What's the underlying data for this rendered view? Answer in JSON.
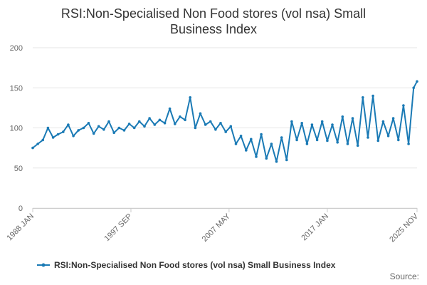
{
  "chart_data": {
    "type": "line",
    "title": "RSI:Non-Specialised Non Food stores (vol nsa) Small Business Index",
    "xlabel": "",
    "ylabel": "",
    "y_ticks": [
      "0",
      "50",
      "100",
      "150",
      "200"
    ],
    "ylim": [
      0,
      200
    ],
    "x_ticks": [
      "1988 JAN",
      "1997 SEP",
      "2007 MAY",
      "2017 JAN",
      "2025 NOV"
    ],
    "grid": "horizontal",
    "legend_position": "bottom",
    "colors": {
      "series": "#1a7ab5",
      "grid": "#e6e6e6"
    },
    "series": [
      {
        "name": "RSI:Non-Specialised Non Food stores (vol nsa) Small Business Index",
        "x": [
          "1988-01",
          "1988-07",
          "1989-01",
          "1989-07",
          "1990-01",
          "1990-07",
          "1991-01",
          "1991-07",
          "1992-01",
          "1992-07",
          "1993-01",
          "1993-07",
          "1994-01",
          "1994-07",
          "1995-01",
          "1995-07",
          "1996-01",
          "1996-07",
          "1997-01",
          "1997-07",
          "1998-01",
          "1998-07",
          "1999-01",
          "1999-07",
          "2000-01",
          "2000-07",
          "2001-01",
          "2001-07",
          "2002-01",
          "2002-07",
          "2003-01",
          "2003-07",
          "2004-01",
          "2004-07",
          "2005-01",
          "2005-07",
          "2006-01",
          "2006-07",
          "2007-01",
          "2007-07",
          "2008-01",
          "2008-07",
          "2009-01",
          "2009-07",
          "2010-01",
          "2010-07",
          "2011-01",
          "2011-07",
          "2012-01",
          "2012-07",
          "2013-01",
          "2013-07",
          "2014-01",
          "2014-07",
          "2015-01",
          "2015-07",
          "2016-01",
          "2016-07",
          "2017-01",
          "2017-07",
          "2018-01",
          "2018-07",
          "2019-01",
          "2019-07",
          "2020-01",
          "2020-07",
          "2021-01",
          "2021-07",
          "2022-01",
          "2022-07",
          "2023-01",
          "2023-07",
          "2024-01",
          "2024-07",
          "2025-01",
          "2025-07",
          "2025-11"
        ],
        "values": [
          75,
          80,
          85,
          100,
          88,
          92,
          95,
          104,
          90,
          97,
          100,
          106,
          93,
          102,
          98,
          108,
          94,
          100,
          97,
          105,
          100,
          108,
          102,
          112,
          104,
          110,
          106,
          124,
          105,
          114,
          110,
          138,
          100,
          118,
          104,
          108,
          98,
          106,
          95,
          102,
          80,
          90,
          72,
          86,
          64,
          92,
          62,
          80,
          58,
          88,
          60,
          108,
          85,
          106,
          80,
          104,
          85,
          108,
          84,
          104,
          82,
          114,
          80,
          112,
          78,
          138,
          88,
          140,
          84,
          108,
          90,
          112,
          85,
          128,
          80,
          150,
          158
        ]
      }
    ],
    "credit": "Source:"
  }
}
